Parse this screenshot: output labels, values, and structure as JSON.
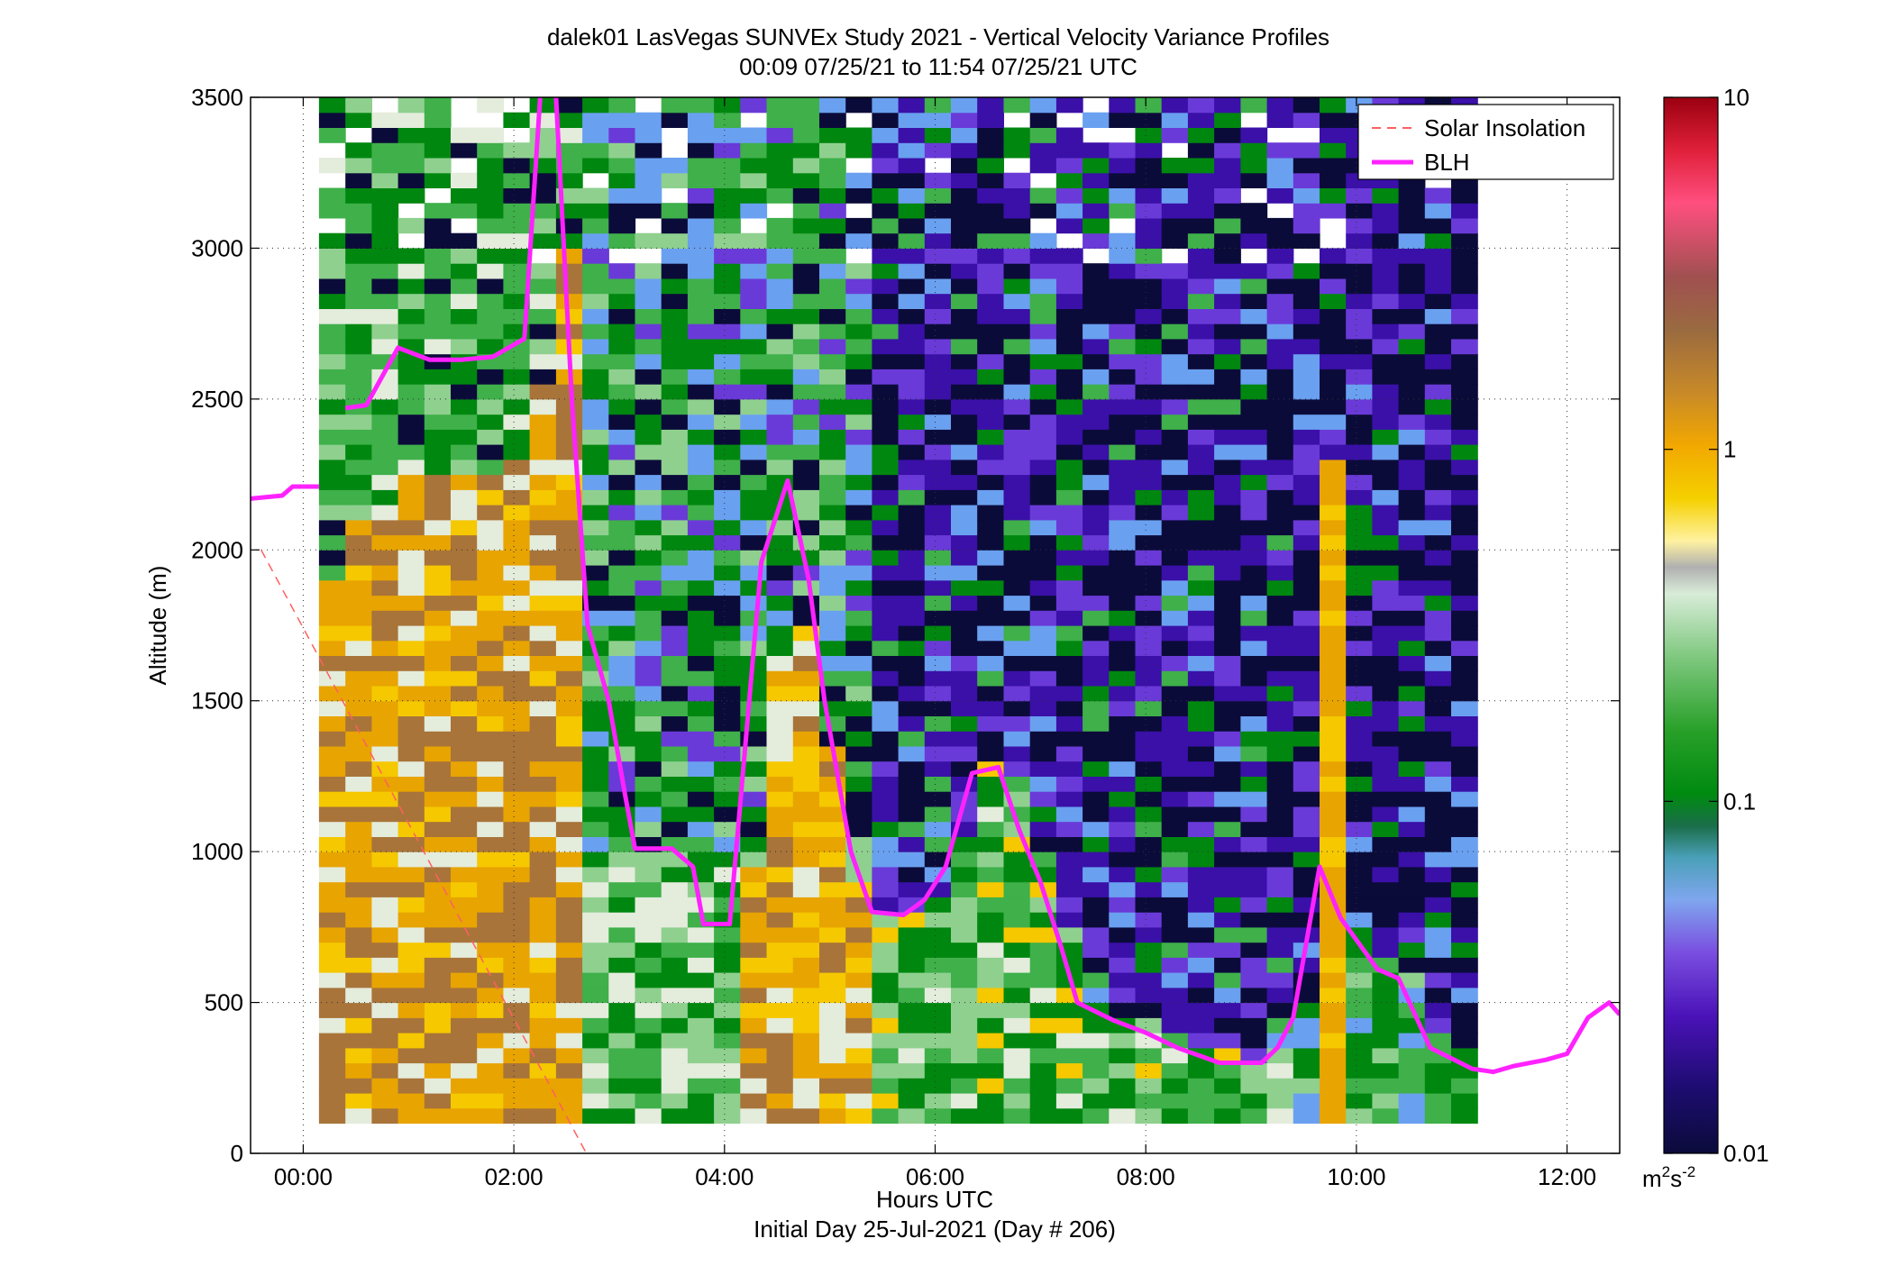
{
  "chart_data": {
    "type": "heatmap",
    "title_line1": "dalek01 LasVegas SUNVEx Study 2021 - Vertical Velocity Variance Profiles",
    "title_line2": "00:09 07/25/21 to 11:54 07/25/21  UTC",
    "xlabel": "Hours UTC",
    "xlabel2": "Initial Day 25-Jul-2021 (Day # 206)",
    "ylabel": "Altitude (m)",
    "xlim_hours": [
      -0.5,
      12.5
    ],
    "ylim": [
      0,
      3500
    ],
    "x_ticks": [
      {
        "value": 0,
        "label": "00:00"
      },
      {
        "value": 2,
        "label": "02:00"
      },
      {
        "value": 4,
        "label": "04:00"
      },
      {
        "value": 6,
        "label": "06:00"
      },
      {
        "value": 8,
        "label": "08:00"
      },
      {
        "value": 10,
        "label": "10:00"
      },
      {
        "value": 12,
        "label": "12:00"
      }
    ],
    "y_ticks": [
      0,
      500,
      1000,
      1500,
      2000,
      2500,
      3000,
      3500
    ],
    "grid": true,
    "colorbar": {
      "scale": "log",
      "range": [
        0.01,
        10
      ],
      "ticks": [
        {
          "value": 0.01,
          "label": "0.01"
        },
        {
          "value": 0.1,
          "label": "0.1"
        },
        {
          "value": 1,
          "label": "1"
        },
        {
          "value": 10,
          "label": "10"
        }
      ],
      "unit_base": "m",
      "unit_sup1": "2",
      "unit_mid": "s",
      "unit_sup2": "-2"
    },
    "legend": {
      "placement": "top-right",
      "entries": [
        {
          "label": "Solar Insolation",
          "style": "dashed",
          "color": "#ff6060"
        },
        {
          "label": "BLH",
          "style": "solid",
          "color": "#ff22ff"
        }
      ]
    },
    "heatmap_grid": {
      "time_start_hours": 0.15,
      "time_step_hours": 0.25,
      "alt_start_m": 100,
      "alt_step_m": 50
    },
    "blh_series": {
      "name": "BLH",
      "color": "#ff22ff",
      "segments": [
        [
          [
            -0.5,
            2170
          ],
          [
            -0.2,
            2180
          ],
          [
            -0.1,
            2210
          ],
          [
            0.15,
            2210
          ]
        ],
        [
          [
            0.4,
            2470
          ],
          [
            0.6,
            2480
          ],
          [
            0.9,
            2670
          ],
          [
            1.2,
            2630
          ],
          [
            1.5,
            2630
          ],
          [
            1.8,
            2640
          ],
          [
            2.1,
            2700
          ],
          [
            2.25,
            3500
          ]
        ],
        [
          [
            2.4,
            3500
          ],
          [
            2.55,
            2500
          ],
          [
            2.7,
            1750
          ],
          [
            2.9,
            1500
          ],
          [
            3.05,
            1200
          ],
          [
            3.15,
            1010
          ],
          [
            3.5,
            1010
          ],
          [
            3.7,
            950
          ],
          [
            3.8,
            760
          ],
          [
            4.05,
            760
          ],
          [
            4.35,
            1960
          ],
          [
            4.6,
            2230
          ],
          [
            4.8,
            1900
          ],
          [
            4.95,
            1500
          ],
          [
            5.2,
            1000
          ],
          [
            5.4,
            800
          ],
          [
            5.7,
            790
          ],
          [
            5.9,
            840
          ],
          [
            6.1,
            950
          ],
          [
            6.35,
            1260
          ],
          [
            6.6,
            1280
          ],
          [
            6.8,
            1070
          ],
          [
            7.0,
            900
          ],
          [
            7.2,
            680
          ],
          [
            7.35,
            500
          ],
          [
            7.7,
            440
          ],
          [
            8.0,
            400
          ],
          [
            8.3,
            350
          ],
          [
            8.7,
            300
          ],
          [
            9.1,
            300
          ],
          [
            9.25,
            350
          ],
          [
            9.4,
            450
          ],
          [
            9.65,
            950
          ],
          [
            9.85,
            780
          ],
          [
            10.2,
            610
          ],
          [
            10.4,
            580
          ],
          [
            10.7,
            350
          ],
          [
            11.1,
            280
          ],
          [
            11.3,
            270
          ],
          [
            11.5,
            290
          ],
          [
            11.8,
            310
          ],
          [
            12.0,
            330
          ],
          [
            12.2,
            450
          ],
          [
            12.4,
            500
          ],
          [
            12.5,
            460
          ]
        ]
      ]
    },
    "solar_insolation_series": {
      "name": "Solar Insolation",
      "color": "#ff6060",
      "points": [
        [
          -0.4,
          2000
        ],
        [
          2.75,
          -40
        ]
      ]
    },
    "profiles": [
      "..WW.........................RBWBWBWBWB..WB...............",
      "GGgGgGgGggGgggggWWYWTgYYwGgGTgWTsbvWbbIcvbbbBcbGGGGtGgGGGGG",
      "BBBPBBBPBPBBBBBBBBBBBBBBBBBBBBBBBPBBBPBBPBBBBBGGgGgGgGggggG",
      "BBBPBPBBBBBBBBBBBBBBBBBBBBBBBBBBBBBBBBBBBWWBBBBGGgGggGgggGG",
      "BBBBBBBBBBBBBBBBBBBBBBBBBBBBBBBBBBBBBBBBBBBBBBBBGGgGgggggGG",
      "BBPBBBBBBBBBBBBBBBBBBBBBBBBBBBBBBBBBBBBBBBBBBBBBGgggGGgggGg",
      "BBBBBBBBBBBBBBBBBBBBBBBBBBBBBBBBBBBBBBBBBBBBBBBBGgggGGgGgGg",
      "YYYYYYYYYYYYYYYYYYYYYYYYYYYYYYYYYYYYYYYYYYYYYYYYYGgggGgGgGg",
      "YYYYYYYYYYYYYYYYYYYYYYYYYYYYYYYYYYYYYYYYYYYYYYYYYYYYYYGgggG",
      "YYYYYYYYYYYYYYYYYYYYYYYYYYYYYYYYYYYYYYYYYYYYYYYYYYYYYYYYYGG",
      "YYYYYYYYYYYYYYYYYYYYYYYYYYYYYYYYYYYYYYYYYYYYYYYYYYYYYYYYYYYY"
    ]
  }
}
